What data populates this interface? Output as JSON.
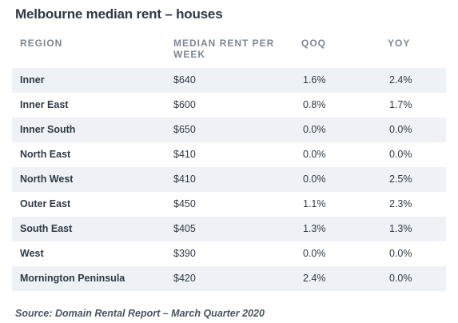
{
  "title": "Melbourne median rent – houses",
  "columns": {
    "region": "REGION",
    "rent": "MEDIAN RENT PER WEEK",
    "qoq": "QOQ",
    "yoy": "YOY"
  },
  "rows": [
    {
      "region": "Inner",
      "rent": "$640",
      "qoq": "1.6%",
      "yoy": "2.4%"
    },
    {
      "region": "Inner East",
      "rent": "$600",
      "qoq": "0.8%",
      "yoy": "1.7%"
    },
    {
      "region": "Inner South",
      "rent": "$650",
      "qoq": "0.0%",
      "yoy": "0.0%"
    },
    {
      "region": "North East",
      "rent": "$410",
      "qoq": "0.0%",
      "yoy": "0.0%"
    },
    {
      "region": "North West",
      "rent": "$410",
      "qoq": "0.0%",
      "yoy": "2.5%"
    },
    {
      "region": "Outer East",
      "rent": "$450",
      "qoq": "1.1%",
      "yoy": "2.3%"
    },
    {
      "region": "South East",
      "rent": "$405",
      "qoq": "1.3%",
      "yoy": "1.3%"
    },
    {
      "region": "West",
      "rent": "$390",
      "qoq": "0.0%",
      "yoy": "0.0%"
    },
    {
      "region": "Mornington Peninsula",
      "rent": "$420",
      "qoq": "2.4%",
      "yoy": "0.0%"
    }
  ],
  "source": "Source: Domain Rental Report – March Quarter 2020",
  "colors": {
    "shade": "#eef1f5",
    "header_text": "#7d8793",
    "body_text": "#2f3a45"
  }
}
